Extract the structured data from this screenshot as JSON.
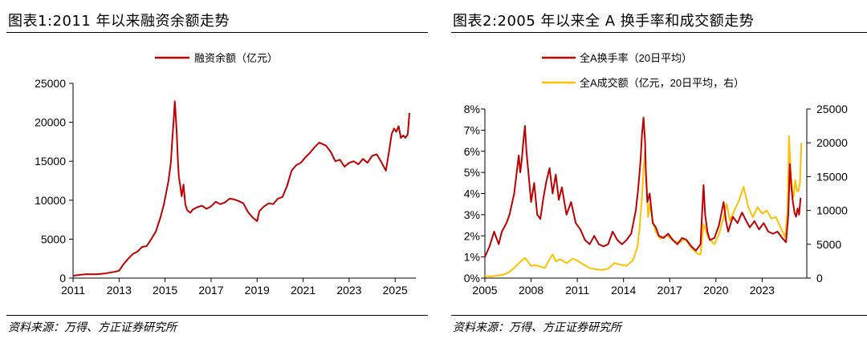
{
  "charts": [
    {
      "title": "图表1:2011 年以来融资余额走势",
      "source": "资料来源：万得、方正证券研究所"
    },
    {
      "title": "图表2:2005 年以来全 A 换手率和成交额走势",
      "source": "资料来源：万得、方正证券研究所"
    }
  ],
  "colors": {
    "red": "#c00000",
    "gold": "#ffc000"
  },
  "chart_data": [
    {
      "type": "line",
      "title": "图表1:2011 年以来融资余额走势",
      "legend_position": "top-center",
      "grid": false,
      "xlim": [
        2011,
        2025.9
      ],
      "ylim": [
        0,
        25000
      ],
      "x_ticks": [
        2011,
        2013,
        2015,
        2017,
        2019,
        2021,
        2023,
        2025
      ],
      "x_tick_labels": [
        "2011",
        "2013",
        "2015",
        "2017",
        "2019",
        "2021",
        "2023",
        "2025"
      ],
      "y_ticks": [
        0,
        5000,
        10000,
        15000,
        20000,
        25000
      ],
      "y_tick_labels": [
        "0",
        "5000",
        "10000",
        "15000",
        "20000",
        "25000"
      ],
      "series": [
        {
          "name": "融资余额（亿元）",
          "color": "#c00000",
          "x": [
            2011.0,
            2011.3,
            2011.6,
            2012.0,
            2012.4,
            2012.8,
            2013.0,
            2013.2,
            2013.4,
            2013.6,
            2013.8,
            2014.0,
            2014.2,
            2014.4,
            2014.6,
            2014.8,
            2014.95,
            2015.05,
            2015.15,
            2015.25,
            2015.32,
            2015.38,
            2015.42,
            2015.45,
            2015.5,
            2015.55,
            2015.6,
            2015.65,
            2015.72,
            2015.8,
            2015.88,
            2015.95,
            2016.0,
            2016.1,
            2016.2,
            2016.4,
            2016.6,
            2016.8,
            2017.0,
            2017.2,
            2017.4,
            2017.6,
            2017.8,
            2018.0,
            2018.2,
            2018.4,
            2018.6,
            2018.8,
            2019.0,
            2019.1,
            2019.3,
            2019.5,
            2019.7,
            2019.9,
            2020.1,
            2020.3,
            2020.5,
            2020.7,
            2020.9,
            2021.1,
            2021.3,
            2021.5,
            2021.7,
            2021.85,
            2022.0,
            2022.2,
            2022.4,
            2022.6,
            2022.8,
            2023.0,
            2023.2,
            2023.4,
            2023.6,
            2023.8,
            2024.0,
            2024.2,
            2024.4,
            2024.6,
            2024.75,
            2024.85,
            2024.95,
            2025.05,
            2025.15,
            2025.25,
            2025.35,
            2025.45,
            2025.55,
            2025.62
          ],
          "values": [
            300,
            420,
            500,
            480,
            600,
            800,
            950,
            1800,
            2500,
            3100,
            3400,
            4000,
            4100,
            5000,
            6000,
            7800,
            9500,
            11000,
            12500,
            14800,
            18000,
            20500,
            22700,
            21500,
            19000,
            15500,
            13000,
            12000,
            10500,
            12000,
            9500,
            8800,
            8600,
            8400,
            8800,
            9100,
            9300,
            8900,
            9200,
            9800,
            9500,
            9700,
            10200,
            10100,
            9900,
            9600,
            8500,
            7800,
            7300,
            8600,
            9200,
            9600,
            9500,
            10200,
            10400,
            11800,
            13800,
            14500,
            14800,
            15500,
            16100,
            16800,
            17400,
            17200,
            17000,
            16200,
            15000,
            15200,
            14300,
            14800,
            15000,
            14600,
            15300,
            14800,
            15700,
            15900,
            14900,
            13800,
            16500,
            18500,
            19200,
            18800,
            19500,
            18000,
            18300,
            18000,
            18500,
            21200
          ]
        }
      ]
    },
    {
      "type": "line",
      "title": "图表2:2005 年以来全 A 换手率和成交额走势",
      "legend_position": "top-center",
      "grid": false,
      "xlim": [
        2005,
        2025.9
      ],
      "ylim_left": [
        0,
        8
      ],
      "ylim_right": [
        0,
        25000
      ],
      "x_ticks": [
        2005,
        2008,
        2011,
        2014,
        2017,
        2020,
        2023
      ],
      "x_tick_labels": [
        "2005",
        "2008",
        "2011",
        "2014",
        "2017",
        "2020",
        "2023"
      ],
      "y_left_ticks": [
        0,
        1,
        2,
        3,
        4,
        5,
        6,
        7,
        8
      ],
      "y_left_tick_labels": [
        "0%",
        "1%",
        "2%",
        "3%",
        "4%",
        "5%",
        "6%",
        "7%",
        "8%"
      ],
      "y_right_ticks": [
        0,
        5000,
        10000,
        15000,
        20000,
        25000
      ],
      "y_right_tick_labels": [
        "0",
        "5000",
        "10000",
        "15000",
        "20000",
        "25000"
      ],
      "series": [
        {
          "name": "全A换手率（20日平均）",
          "axis": "left",
          "color": "#c00000",
          "x": [
            2005.0,
            2005.3,
            2005.6,
            2005.9,
            2006.1,
            2006.4,
            2006.6,
            2006.9,
            2007.1,
            2007.2,
            2007.3,
            2007.4,
            2007.5,
            2007.6,
            2007.7,
            2007.85,
            2008.0,
            2008.2,
            2008.4,
            2008.6,
            2008.8,
            2009.0,
            2009.2,
            2009.4,
            2009.6,
            2009.8,
            2010.0,
            2010.3,
            2010.6,
            2010.9,
            2011.2,
            2011.5,
            2011.8,
            2012.1,
            2012.4,
            2012.7,
            2013.0,
            2013.3,
            2013.6,
            2013.9,
            2014.2,
            2014.5,
            2014.8,
            2014.95,
            2015.1,
            2015.2,
            2015.3,
            2015.4,
            2015.45,
            2015.55,
            2015.7,
            2015.9,
            2016.1,
            2016.3,
            2016.6,
            2016.9,
            2017.2,
            2017.5,
            2017.8,
            2018.1,
            2018.4,
            2018.7,
            2019.0,
            2019.2,
            2019.3,
            2019.45,
            2019.6,
            2019.9,
            2020.2,
            2020.5,
            2020.65,
            2020.8,
            2021.1,
            2021.4,
            2021.7,
            2021.9,
            2022.2,
            2022.5,
            2022.8,
            2023.1,
            2023.4,
            2023.7,
            2024.0,
            2024.3,
            2024.55,
            2024.7,
            2024.8,
            2024.9,
            2025.0,
            2025.1,
            2025.2,
            2025.3,
            2025.4,
            2025.5
          ],
          "values": [
            1.0,
            1.5,
            2.2,
            1.6,
            2.2,
            2.6,
            3.0,
            4.0,
            5.2,
            5.8,
            5.0,
            5.6,
            6.5,
            7.2,
            6.0,
            4.8,
            3.6,
            4.5,
            3.0,
            2.8,
            3.8,
            4.6,
            5.2,
            4.0,
            4.9,
            3.7,
            4.3,
            3.0,
            3.6,
            2.6,
            2.3,
            1.8,
            1.6,
            2.0,
            1.6,
            1.5,
            1.6,
            2.2,
            1.8,
            1.6,
            1.8,
            2.1,
            3.2,
            4.2,
            5.5,
            6.8,
            7.6,
            6.5,
            5.0,
            3.6,
            4.0,
            2.6,
            2.4,
            2.0,
            1.9,
            2.1,
            1.8,
            1.6,
            1.9,
            1.8,
            1.5,
            1.3,
            1.6,
            4.4,
            3.0,
            2.2,
            1.8,
            1.9,
            2.5,
            3.6,
            2.7,
            2.2,
            2.9,
            2.6,
            3.1,
            2.8,
            2.4,
            2.7,
            2.3,
            2.6,
            2.2,
            2.1,
            2.2,
            1.9,
            1.7,
            3.0,
            5.4,
            4.3,
            3.6,
            3.1,
            2.9,
            3.3,
            3.0,
            3.8
          ]
        },
        {
          "name": "全A成交额（亿元，20日平均，右）",
          "axis": "right",
          "color": "#ffc000",
          "x": [
            2005.0,
            2005.4,
            2005.8,
            2006.2,
            2006.6,
            2006.9,
            2007.2,
            2007.4,
            2007.6,
            2007.8,
            2008.0,
            2008.3,
            2008.6,
            2008.9,
            2009.2,
            2009.4,
            2009.6,
            2009.9,
            2010.3,
            2010.7,
            2011.0,
            2011.4,
            2011.8,
            2012.2,
            2012.6,
            2013.0,
            2013.4,
            2013.8,
            2014.2,
            2014.6,
            2014.9,
            2015.05,
            2015.2,
            2015.3,
            2015.4,
            2015.5,
            2015.6,
            2015.7,
            2015.9,
            2016.1,
            2016.4,
            2016.8,
            2017.2,
            2017.6,
            2018.0,
            2018.4,
            2018.8,
            2019.0,
            2019.2,
            2019.5,
            2019.9,
            2020.2,
            2020.5,
            2020.7,
            2020.9,
            2021.2,
            2021.5,
            2021.8,
            2022.1,
            2022.4,
            2022.7,
            2023.0,
            2023.3,
            2023.6,
            2023.9,
            2024.2,
            2024.5,
            2024.65,
            2024.75,
            2024.85,
            2024.95,
            2025.05,
            2025.15,
            2025.25,
            2025.35,
            2025.45,
            2025.55
          ],
          "values": [
            300,
            250,
            350,
            500,
            900,
            1500,
            2200,
            2600,
            3000,
            2400,
            1800,
            1900,
            1700,
            1500,
            2800,
            3500,
            2500,
            2800,
            2200,
            2900,
            2600,
            2000,
            1500,
            1300,
            1200,
            1400,
            2200,
            2000,
            1800,
            2600,
            4500,
            7500,
            12000,
            16000,
            19000,
            14000,
            9000,
            11000,
            8500,
            6800,
            5800,
            6300,
            5600,
            5200,
            5800,
            4500,
            3600,
            3500,
            8000,
            6000,
            5000,
            6500,
            9000,
            11000,
            8500,
            10000,
            11500,
            13500,
            10500,
            9000,
            10500,
            9500,
            10000,
            8800,
            9000,
            7500,
            6000,
            10000,
            21000,
            16000,
            13000,
            12000,
            14500,
            13000,
            12800,
            14000,
            20000
          ]
        }
      ]
    }
  ]
}
